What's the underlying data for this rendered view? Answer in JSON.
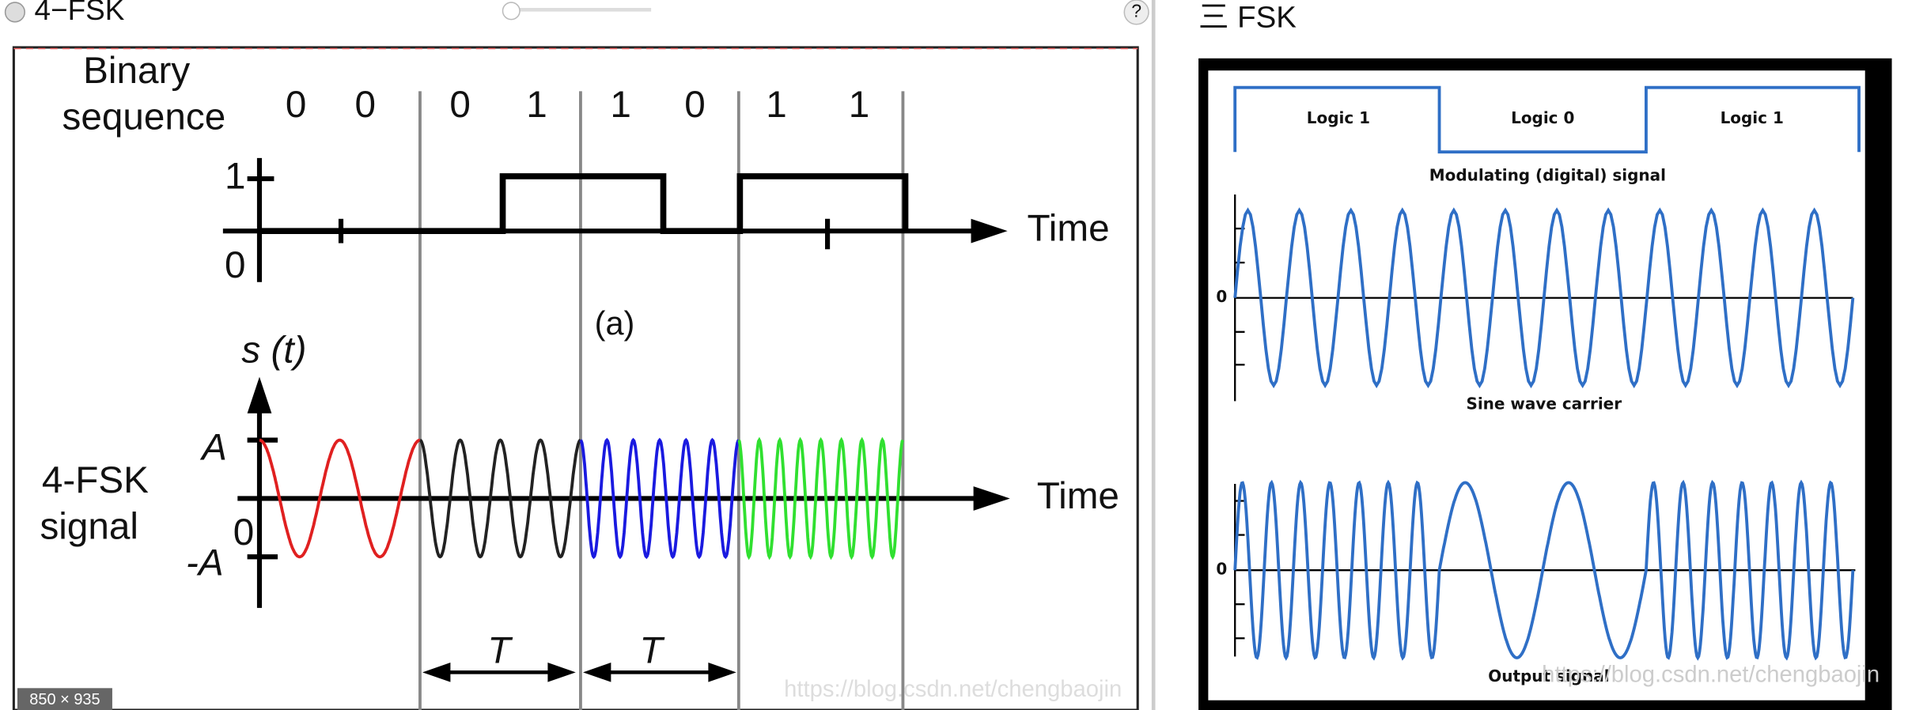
{
  "left_panel": {
    "title": "4−FSK",
    "help": "?",
    "size_badge": "850 × 935",
    "watermark": "https://blog.csdn.net/chengbaojin",
    "diagram": {
      "sequence_label": [
        "Binary",
        "sequence"
      ],
      "bits": [
        "0",
        "0",
        "0",
        "1",
        "1",
        "0",
        "1",
        "1"
      ],
      "level_high": "1",
      "level_low": "0",
      "time_label_top": "Time",
      "caption": "(a)",
      "signal_axis": "s (t)",
      "amp_pos": "A",
      "amp_zero": "0",
      "amp_neg": "-A",
      "signal_label": [
        "4-FSK",
        "signal"
      ],
      "time_label_bottom": "Time",
      "period_labels": [
        "T",
        "T"
      ]
    }
  },
  "right_panel": {
    "title": "三 FSK",
    "watermark": "https://blog.csdn.net/chengbaojin",
    "diagram": {
      "logic_labels": [
        "Logic 1",
        "Logic 0",
        "Logic 1"
      ],
      "modulating_caption": "Modulating (digital) signal",
      "carrier_zero": "0",
      "carrier_caption": "Sine wave carrier",
      "output_zero": "0",
      "output_caption": "Output signal"
    }
  }
}
